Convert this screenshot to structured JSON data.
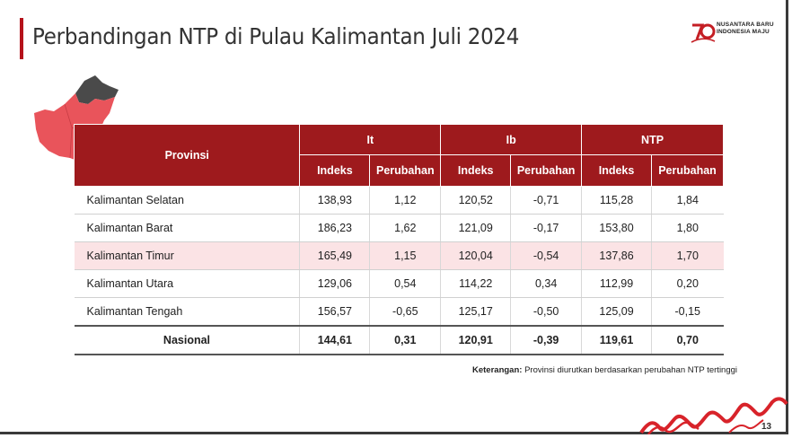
{
  "header": {
    "title": "Perbandingan NTP di Pulau Kalimantan Juli 2024",
    "logo_line1": "NUSANTARA BARU",
    "logo_line2": "INDONESIA MAJU",
    "logo_mark": "79"
  },
  "table": {
    "col_province": "Provinsi",
    "groups": [
      "It",
      "Ib",
      "NTP"
    ],
    "sub_headers": [
      "Indeks",
      "Perubahan",
      "Indeks",
      "Perubahan",
      "Indeks",
      "Perubahan"
    ],
    "rows": [
      {
        "province": "Kalimantan Selatan",
        "values": [
          "138,93",
          "1,12",
          "120,52",
          "-0,71",
          "115,28",
          "1,84"
        ]
      },
      {
        "province": "Kalimantan Barat",
        "values": [
          "186,23",
          "1,62",
          "121,09",
          "-0,17",
          "153,80",
          "1,80"
        ]
      },
      {
        "province": "Kalimantan Timur",
        "values": [
          "165,49",
          "1,15",
          "120,04",
          "-0,54",
          "137,86",
          "1,70"
        ]
      },
      {
        "province": "Kalimantan Utara",
        "values": [
          "129,06",
          "0,54",
          "114,22",
          "0,34",
          "112,99",
          "0,20"
        ]
      },
      {
        "province": "Kalimantan Tengah",
        "values": [
          "156,57",
          "-0,65",
          "125,17",
          "-0,50",
          "125,09",
          "-0,15"
        ]
      }
    ],
    "total": {
      "province": "Nasional",
      "values": [
        "144,61",
        "0,31",
        "120,91",
        "-0,39",
        "119,61",
        "0,70"
      ]
    },
    "highlighted_row": "Kalimantan Timur"
  },
  "note": {
    "label": "Keterangan:",
    "text": " Provinsi diurutkan berdasarkan perubahan NTP tertinggi"
  },
  "page_number": "13",
  "colors": {
    "accent": "#9e1a1d",
    "highlight_row": "#fbe3e5",
    "map_highlight": "#e9545b",
    "map_other": "#4a4a4a"
  }
}
